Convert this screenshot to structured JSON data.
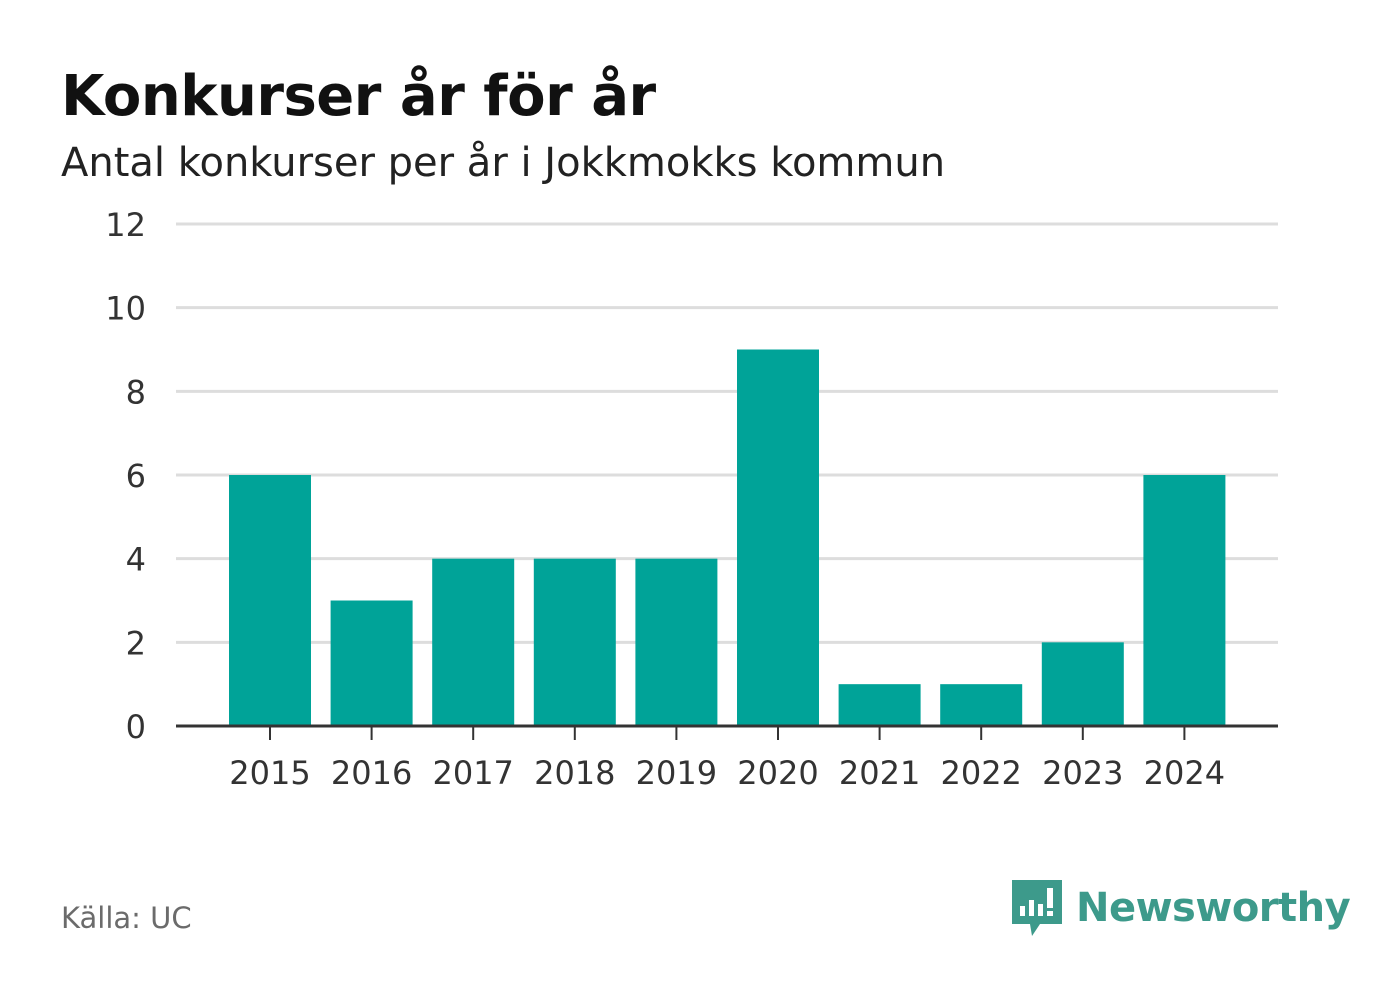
{
  "header": {
    "title": "Konkurser år för år",
    "subtitle": "Antal konkurser per år i Jokkmokks kommun"
  },
  "footer": {
    "source": "Källa: UC",
    "brand": "Newsworthy",
    "brand_icon": "newsworthy-logo-icon"
  },
  "colors": {
    "bar": "#00a398",
    "grid": "#dddddd",
    "axis": "#333333",
    "brand": "#3d9a8b"
  },
  "chart_data": {
    "type": "bar",
    "categories": [
      "2015",
      "2016",
      "2017",
      "2018",
      "2019",
      "2020",
      "2021",
      "2022",
      "2023",
      "2024"
    ],
    "values": [
      6,
      3,
      4,
      4,
      4,
      9,
      1,
      1,
      2,
      6
    ],
    "yticks": [
      0,
      2,
      4,
      6,
      8,
      10,
      12
    ],
    "ylim": [
      0,
      12
    ],
    "grid": true,
    "title": "Konkurser år för år",
    "xlabel": "",
    "ylabel": ""
  }
}
